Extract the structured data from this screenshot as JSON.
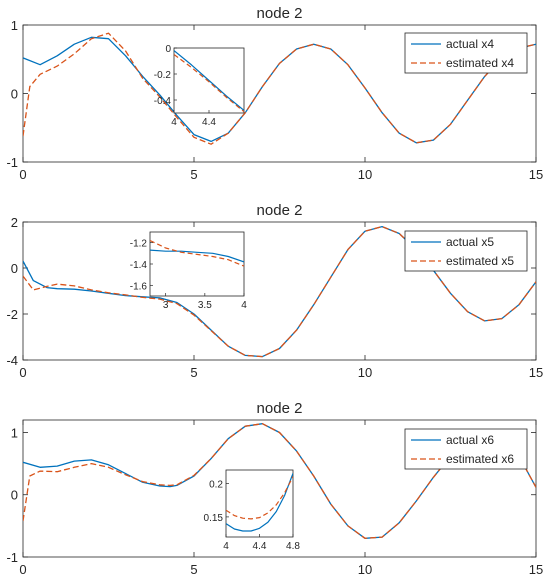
{
  "colors": {
    "actual": "#0072BD",
    "estimated": "#D95319",
    "axis": "#262626"
  },
  "chart_data": [
    {
      "type": "line",
      "title": "node 2",
      "xlim": [
        0,
        15
      ],
      "ylim": [
        -1,
        1
      ],
      "xticks": [
        "0",
        "5",
        "10",
        "15"
      ],
      "yticks": [
        "-1",
        "0",
        "1"
      ],
      "legend": {
        "placement": "top-right",
        "entries": [
          "actual x4",
          "estimated x4"
        ]
      },
      "series": [
        {
          "name": "actual x4",
          "style": "solid",
          "x": [
            0,
            0.5,
            1,
            1.5,
            2,
            2.5,
            3,
            3.5,
            4,
            4.5,
            5,
            5.5,
            6,
            6.5,
            7,
            7.5,
            8,
            8.5,
            9,
            9.5,
            10,
            10.5,
            11,
            11.5,
            12,
            12.5,
            13,
            13.5,
            14,
            14.5,
            15
          ],
          "y": [
            0.52,
            0.42,
            0.55,
            0.72,
            0.82,
            0.8,
            0.55,
            0.25,
            -0.02,
            -0.32,
            -0.6,
            -0.7,
            -0.58,
            -0.28,
            0.1,
            0.44,
            0.65,
            0.72,
            0.65,
            0.42,
            0.08,
            -0.28,
            -0.58,
            -0.72,
            -0.68,
            -0.45,
            -0.1,
            0.25,
            0.52,
            0.66,
            0.72
          ]
        },
        {
          "name": "estimated x4",
          "style": "dashed",
          "x": [
            0,
            0.2,
            0.5,
            1,
            1.5,
            2,
            2.5,
            3,
            3.5,
            4,
            4.5,
            5,
            5.5,
            6,
            6.5,
            7,
            7.5,
            8,
            8.5,
            9,
            9.5,
            10,
            10.5,
            11,
            11.5,
            12,
            12.5,
            13,
            13.5,
            14,
            14.5,
            15
          ],
          "y": [
            -0.62,
            0.1,
            0.28,
            0.4,
            0.58,
            0.8,
            0.88,
            0.62,
            0.22,
            -0.05,
            -0.35,
            -0.64,
            -0.74,
            -0.58,
            -0.28,
            0.1,
            0.44,
            0.65,
            0.72,
            0.65,
            0.42,
            0.08,
            -0.28,
            -0.58,
            -0.72,
            -0.68,
            -0.45,
            -0.1,
            0.25,
            0.52,
            0.66,
            0.72
          ]
        }
      ],
      "inset": {
        "xlim": [
          4,
          4.8
        ],
        "ylim": [
          -0.5,
          0
        ],
        "xticks": [
          4,
          4.4
        ],
        "yticks": [
          0,
          -0.2,
          -0.4
        ],
        "xtick_labels": [
          "4",
          "4.4"
        ],
        "ytick_labels": [
          "0",
          "-0.2",
          "-0.4"
        ],
        "series": [
          {
            "x": [
              4,
              4.2,
              4.4,
              4.6,
              4.8
            ],
            "y": [
              -0.02,
              -0.13,
              -0.25,
              -0.37,
              -0.48
            ]
          },
          {
            "x": [
              4,
              4.2,
              4.4,
              4.6,
              4.8
            ],
            "y": [
              -0.05,
              -0.15,
              -0.26,
              -0.38,
              -0.49
            ]
          }
        ]
      }
    },
    {
      "type": "line",
      "title": "node 2",
      "xlim": [
        0,
        15
      ],
      "ylim": [
        -4,
        2
      ],
      "xticks": [
        "0",
        "5",
        "10",
        "15"
      ],
      "yticks": [
        "-4",
        "-2",
        "0",
        "2"
      ],
      "legend": {
        "placement": "top-right",
        "entries": [
          "actual x5",
          "estimated x5"
        ]
      },
      "series": [
        {
          "name": "actual x5",
          "style": "solid",
          "x": [
            0,
            0.3,
            0.7,
            1,
            1.5,
            2,
            2.5,
            3,
            3.5,
            4,
            4.5,
            5,
            5.5,
            6,
            6.5,
            7,
            7.5,
            8,
            8.5,
            9,
            9.5,
            10,
            10.5,
            11,
            11.5,
            12,
            12.5,
            13,
            13.5,
            14,
            14.5,
            15
          ],
          "y": [
            0.3,
            -0.55,
            -0.85,
            -0.9,
            -0.92,
            -1.0,
            -1.1,
            -1.2,
            -1.25,
            -1.3,
            -1.5,
            -2.0,
            -2.7,
            -3.4,
            -3.8,
            -3.85,
            -3.5,
            -2.7,
            -1.6,
            -0.4,
            0.8,
            1.6,
            1.8,
            1.5,
            0.8,
            -0.1,
            -1.1,
            -1.9,
            -2.3,
            -2.2,
            -1.6,
            -0.6
          ]
        },
        {
          "name": "estimated x5",
          "style": "dashed",
          "x": [
            0,
            0.3,
            0.7,
            1,
            1.5,
            2,
            2.5,
            3,
            3.5,
            4,
            4.5,
            5,
            5.5,
            6,
            6.5,
            7,
            7.5,
            8,
            8.5,
            9,
            9.5,
            10,
            10.5,
            11,
            11.5,
            12,
            12.5,
            13,
            13.5,
            14,
            14.5,
            15
          ],
          "y": [
            -0.35,
            -0.95,
            -0.8,
            -0.7,
            -0.78,
            -0.95,
            -1.08,
            -1.17,
            -1.28,
            -1.35,
            -1.55,
            -2.05,
            -2.72,
            -3.4,
            -3.8,
            -3.85,
            -3.5,
            -2.7,
            -1.6,
            -0.4,
            0.8,
            1.6,
            1.8,
            1.5,
            0.8,
            -0.1,
            -1.1,
            -1.9,
            -2.3,
            -2.2,
            -1.6,
            -0.6
          ]
        }
      ],
      "inset": {
        "xlim": [
          2.8,
          4
        ],
        "ylim": [
          -1.7,
          -1.1
        ],
        "xticks": [
          3,
          3.5,
          4
        ],
        "yticks": [
          -1.2,
          -1.4,
          -1.6
        ],
        "xtick_labels": [
          "3",
          "3.5",
          "4"
        ],
        "ytick_labels": [
          "-1.2",
          "-1.4",
          "-1.6"
        ],
        "series": [
          {
            "x": [
              2.8,
              3,
              3.2,
              3.4,
              3.6,
              3.8,
              4
            ],
            "y": [
              -1.27,
              -1.28,
              -1.28,
              -1.29,
              -1.3,
              -1.33,
              -1.38
            ]
          },
          {
            "x": [
              2.8,
              3,
              3.2,
              3.4,
              3.6,
              3.8,
              4
            ],
            "y": [
              -1.18,
              -1.25,
              -1.29,
              -1.31,
              -1.33,
              -1.36,
              -1.42
            ]
          }
        ]
      }
    },
    {
      "type": "line",
      "title": "node 2",
      "xlim": [
        0,
        15
      ],
      "ylim": [
        -1,
        1.2
      ],
      "xticks": [
        "0",
        "5",
        "10",
        "15"
      ],
      "yticks": [
        "-1",
        "0",
        "1"
      ],
      "legend": {
        "placement": "top-right",
        "entries": [
          "actual x6",
          "estimated x6"
        ]
      },
      "series": [
        {
          "name": "actual x6",
          "style": "solid",
          "x": [
            0,
            0.5,
            1,
            1.5,
            2,
            2.5,
            3,
            3.5,
            4,
            4.3,
            4.5,
            5,
            5.5,
            6,
            6.5,
            7,
            7.5,
            8,
            8.5,
            9,
            9.5,
            10,
            10.5,
            11,
            11.5,
            12,
            12.5,
            13,
            13.5,
            14,
            14.5,
            15
          ],
          "y": [
            0.52,
            0.44,
            0.46,
            0.54,
            0.56,
            0.48,
            0.34,
            0.2,
            0.14,
            0.13,
            0.15,
            0.3,
            0.58,
            0.9,
            1.1,
            1.14,
            1.0,
            0.7,
            0.3,
            -0.15,
            -0.5,
            -0.7,
            -0.68,
            -0.45,
            -0.1,
            0.28,
            0.62,
            0.88,
            1.0,
            0.92,
            0.62,
            0.12
          ]
        },
        {
          "name": "estimated x6",
          "style": "dashed",
          "x": [
            0,
            0.2,
            0.5,
            1,
            1.5,
            2,
            2.5,
            3,
            3.5,
            4,
            4.3,
            4.5,
            5,
            5.5,
            6,
            6.5,
            7,
            7.5,
            8,
            8.5,
            9,
            9.5,
            10,
            10.5,
            11,
            11.5,
            12,
            12.5,
            13,
            13.5,
            14,
            14.5,
            15
          ],
          "y": [
            -0.42,
            0.3,
            0.38,
            0.37,
            0.44,
            0.5,
            0.44,
            0.32,
            0.21,
            0.16,
            0.15,
            0.16,
            0.31,
            0.58,
            0.9,
            1.1,
            1.14,
            1.0,
            0.7,
            0.3,
            -0.15,
            -0.5,
            -0.7,
            -0.68,
            -0.45,
            -0.1,
            0.28,
            0.62,
            0.88,
            1.0,
            0.92,
            0.62,
            0.12
          ]
        }
      ],
      "inset": {
        "xlim": [
          4,
          4.8
        ],
        "ylim": [
          0.12,
          0.22
        ],
        "xticks": [
          4,
          4.4,
          4.8
        ],
        "yticks": [
          0.2,
          0.15
        ],
        "xtick_labels": [
          "4",
          "4.4",
          "4.8"
        ],
        "ytick_labels": [
          "0.2",
          "0.15"
        ],
        "series": [
          {
            "x": [
              4,
              4.1,
              4.2,
              4.3,
              4.4,
              4.5,
              4.6,
              4.7,
              4.8
            ],
            "y": [
              0.14,
              0.132,
              0.129,
              0.129,
              0.133,
              0.142,
              0.158,
              0.182,
              0.215
            ]
          },
          {
            "x": [
              4,
              4.1,
              4.2,
              4.3,
              4.4,
              4.5,
              4.6,
              4.7,
              4.8
            ],
            "y": [
              0.16,
              0.152,
              0.148,
              0.147,
              0.149,
              0.156,
              0.168,
              0.186,
              0.21
            ]
          }
        ]
      }
    }
  ]
}
